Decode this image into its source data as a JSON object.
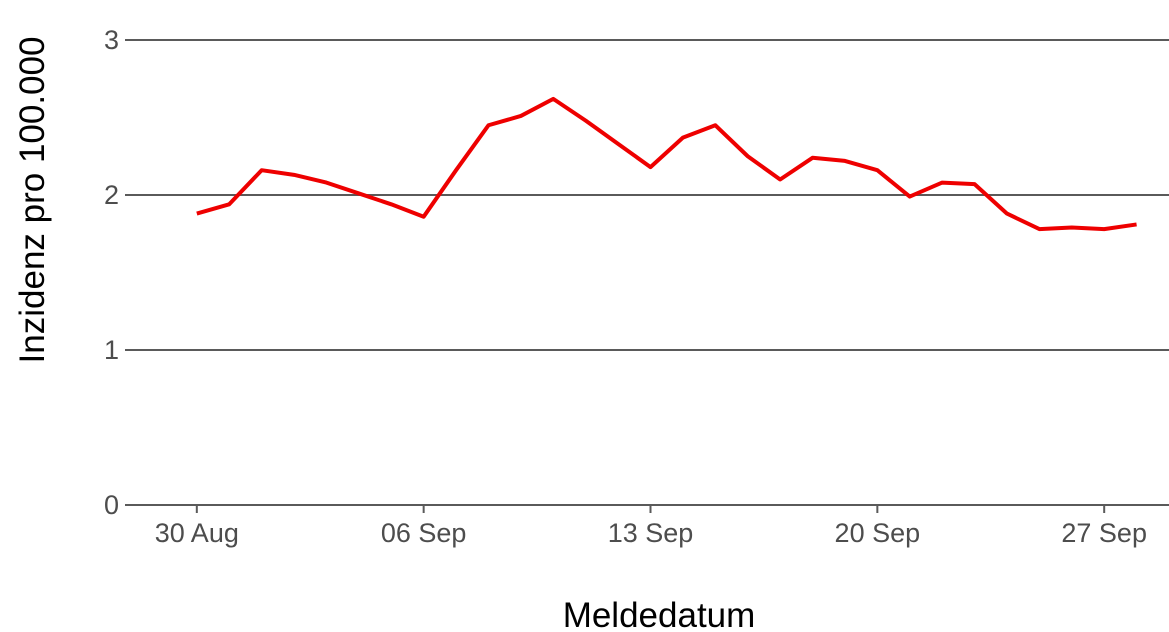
{
  "chart_data": {
    "type": "line",
    "title": "",
    "xlabel": "Meldedatum",
    "ylabel": "Inzidenz pro 100.000",
    "x_tick_labels": [
      {
        "date": "2020-08-30",
        "label": "30 Aug"
      },
      {
        "date": "2020-09-06",
        "label": "06 Sep"
      },
      {
        "date": "2020-09-13",
        "label": "13 Sep"
      },
      {
        "date": "2020-09-20",
        "label": "20 Sep"
      },
      {
        "date": "2020-09-27",
        "label": "27 Sep"
      }
    ],
    "y_ticks": [
      0,
      1,
      2,
      3
    ],
    "xlim": [
      "2020-08-28",
      "2020-09-29"
    ],
    "ylim": [
      0,
      3
    ],
    "grid": "horizontal major",
    "series": [
      {
        "color": "#ee0000",
        "x": [
          "2020-08-30",
          "2020-08-31",
          "2020-09-01",
          "2020-09-02",
          "2020-09-03",
          "2020-09-04",
          "2020-09-05",
          "2020-09-06",
          "2020-09-07",
          "2020-09-08",
          "2020-09-09",
          "2020-09-10",
          "2020-09-11",
          "2020-09-12",
          "2020-09-13",
          "2020-09-14",
          "2020-09-15",
          "2020-09-16",
          "2020-09-17",
          "2020-09-18",
          "2020-09-19",
          "2020-09-20",
          "2020-09-21",
          "2020-09-22",
          "2020-09-23",
          "2020-09-24",
          "2020-09-25",
          "2020-09-26",
          "2020-09-27",
          "2020-09-28"
        ],
        "y": [
          1.88,
          1.94,
          2.16,
          2.13,
          2.08,
          2.01,
          1.94,
          1.86,
          2.16,
          2.45,
          2.51,
          2.62,
          2.48,
          2.33,
          2.18,
          2.37,
          2.45,
          2.25,
          2.1,
          2.24,
          2.22,
          2.16,
          1.99,
          2.08,
          2.07,
          1.88,
          1.78,
          1.79,
          1.78,
          1.81
        ]
      }
    ]
  }
}
